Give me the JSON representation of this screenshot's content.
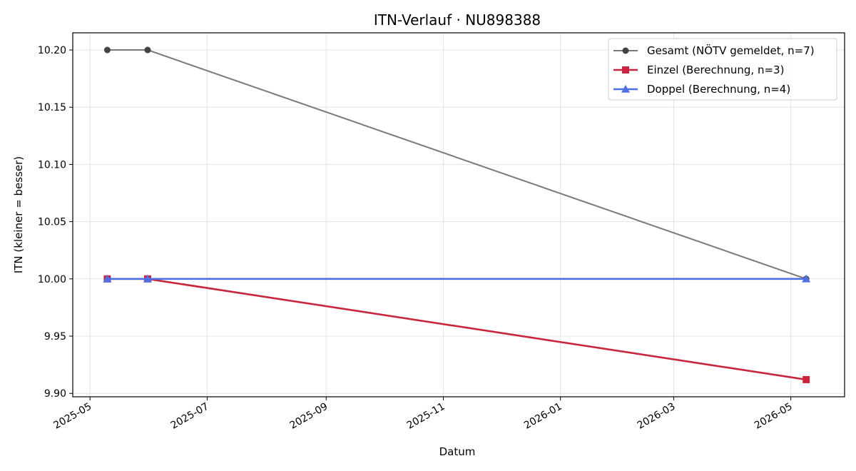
{
  "chart_data": {
    "type": "line",
    "title": "ITN-Verlauf · NU898388",
    "xlabel": "Datum",
    "ylabel": "ITN  (kleiner = besser)",
    "x_ticks": [
      "2025-05",
      "2025-07",
      "2025-09",
      "2025-11",
      "2026-01",
      "2026-03",
      "2026-05"
    ],
    "y_ticks": [
      "10.20",
      "10.15",
      "10.10",
      "10.05",
      "10.00",
      "9.95",
      "9.90"
    ],
    "ylim": [
      9.897,
      10.215
    ],
    "xlim": [
      "2025-04-22",
      "2026-05-29"
    ],
    "grid": true,
    "legend_position": "top-right",
    "series": [
      {
        "name": "Gesamt (NÖTV gemeldet, n=7)",
        "color": "#7a7a7a",
        "marker_color": "#444444",
        "marker": "circle",
        "points": [
          {
            "x": "2025-05-10",
            "y": 10.2
          },
          {
            "x": "2025-05-31",
            "y": 10.2
          },
          {
            "x": "2026-05-09",
            "y": 10.0
          }
        ]
      },
      {
        "name": "Einzel (Berechnung, n=3)",
        "color": "#c8263e",
        "marker_color": "#c8263e",
        "marker": "square",
        "points": [
          {
            "x": "2025-05-10",
            "y": 10.0
          },
          {
            "x": "2025-05-31",
            "y": 10.0
          },
          {
            "x": "2026-05-09",
            "y": 9.912
          }
        ]
      },
      {
        "name": "Doppel (Berechnung, n=4)",
        "color": "#4f6fe6",
        "marker_color": "#4f6fe6",
        "marker": "triangle",
        "points": [
          {
            "x": "2025-05-10",
            "y": 10.0
          },
          {
            "x": "2025-05-31",
            "y": 10.0
          },
          {
            "x": "2026-05-09",
            "y": 10.0
          }
        ]
      }
    ]
  }
}
